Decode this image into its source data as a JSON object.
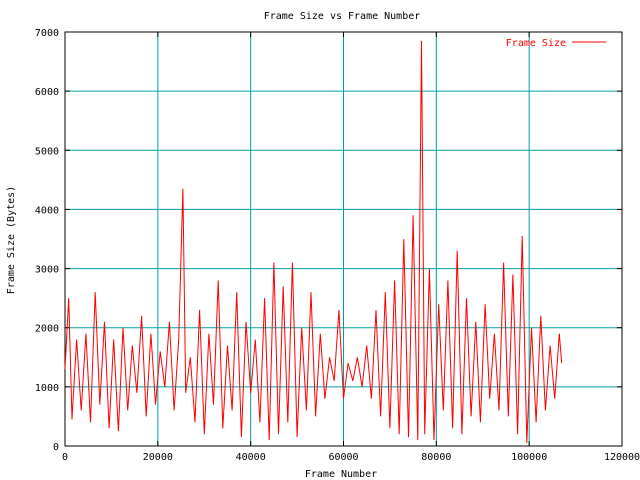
{
  "chart_data": {
    "type": "line",
    "title": "Frame Size vs Frame Number",
    "xlabel": "Frame Number",
    "ylabel": "Frame Size (Bytes)",
    "xlim": [
      0,
      120000
    ],
    "ylim": [
      0,
      7000
    ],
    "x_ticks": [
      0,
      20000,
      40000,
      60000,
      80000,
      100000,
      120000
    ],
    "x_tick_labels": [
      "0",
      "20000",
      "40000",
      "60000",
      "80000",
      "100000",
      "120000"
    ],
    "y_ticks": [
      0,
      1000,
      2000,
      3000,
      4000,
      5000,
      6000,
      7000
    ],
    "y_tick_labels": [
      "0",
      "1000",
      "2000",
      "3000",
      "4000",
      "5000",
      "6000",
      "7000"
    ],
    "grid": true,
    "legend_position": "top-right",
    "series": [
      {
        "name": "Frame Size",
        "color": "#ff0000",
        "x": [
          0,
          800,
          1500,
          2500,
          3500,
          4500,
          5500,
          6500,
          7500,
          8500,
          9500,
          10500,
          11500,
          12500,
          13500,
          14500,
          15500,
          16500,
          17500,
          18500,
          19500,
          20500,
          21500,
          22500,
          23500,
          24500,
          25400,
          26000,
          27000,
          28000,
          29000,
          30000,
          31000,
          32000,
          33000,
          34000,
          35000,
          36000,
          37000,
          38000,
          39000,
          40000,
          41000,
          42000,
          43000,
          44000,
          45000,
          46000,
          47000,
          48000,
          49000,
          50000,
          51000,
          52000,
          53000,
          54000,
          55000,
          56000,
          57000,
          58000,
          59000,
          60000,
          61000,
          62000,
          63000,
          64000,
          65000,
          66000,
          67000,
          68000,
          69000,
          70000,
          71000,
          72000,
          73000,
          74000,
          75000,
          76000,
          76800,
          77500,
          78500,
          79500,
          80500,
          81500,
          82500,
          83500,
          84500,
          85500,
          86500,
          87500,
          88500,
          89500,
          90500,
          91500,
          92500,
          93500,
          94500,
          95500,
          96500,
          97500,
          98500,
          99500,
          100500,
          101500,
          102500,
          103500,
          104500,
          105500,
          106500,
          107000
        ],
        "y": [
          1300,
          2500,
          450,
          1800,
          600,
          1900,
          400,
          2600,
          700,
          2100,
          300,
          1800,
          250,
          2000,
          600,
          1700,
          900,
          2200,
          500,
          1900,
          700,
          1600,
          1000,
          2100,
          600,
          1800,
          4350,
          900,
          1500,
          400,
          2300,
          200,
          1900,
          700,
          2800,
          300,
          1700,
          600,
          2600,
          150,
          2100,
          900,
          1800,
          400,
          2500,
          100,
          3100,
          200,
          2700,
          400,
          3100,
          150,
          2000,
          600,
          2600,
          500,
          1900,
          800,
          1500,
          1100,
          2300,
          800,
          1400,
          1100,
          1500,
          1000,
          1700,
          800,
          2300,
          500,
          2600,
          300,
          2800,
          200,
          3500,
          150,
          3900,
          100,
          6850,
          200,
          3000,
          100,
          2400,
          600,
          2800,
          300,
          3300,
          200,
          2500,
          500,
          2100,
          400,
          2400,
          800,
          1900,
          600,
          3100,
          500,
          2900,
          200,
          3550,
          50,
          2000,
          400,
          2200,
          600,
          1700,
          800,
          1900,
          1400
        ]
      }
    ]
  }
}
